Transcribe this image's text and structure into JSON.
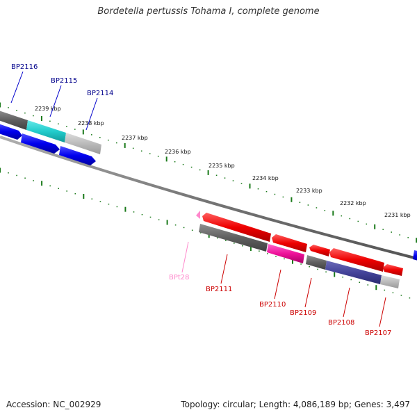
{
  "title": "Bordetella pertussis Tohama I, complete genome",
  "footer": {
    "accession": "Accession: NC_002929",
    "summary": "Topology: circular; Length: 4,086,189 bp; Genes: 3,497"
  },
  "colors": {
    "backbone": "#888888",
    "tick": "#1a7a1a",
    "forward_gene": "#0000ee",
    "forward_label": "#00008b",
    "reverse_gene": "#ee0000",
    "reverse_label": "#cc0000",
    "trna": "#ff88cc"
  },
  "kbp_ticks": [
    "2239 kbp",
    "2238 kbp",
    "2237 kbp",
    "2236 kbp",
    "2235 kbp",
    "2234 kbp",
    "2233 kbp",
    "2232 kbp",
    "2231 kbp"
  ],
  "forward_genes": [
    "BP2116",
    "BP2115",
    "BP2114"
  ],
  "reverse_genes": [
    "BPt28",
    "BP2111",
    "BP2110",
    "BP2109",
    "BP2108",
    "BP2107"
  ]
}
